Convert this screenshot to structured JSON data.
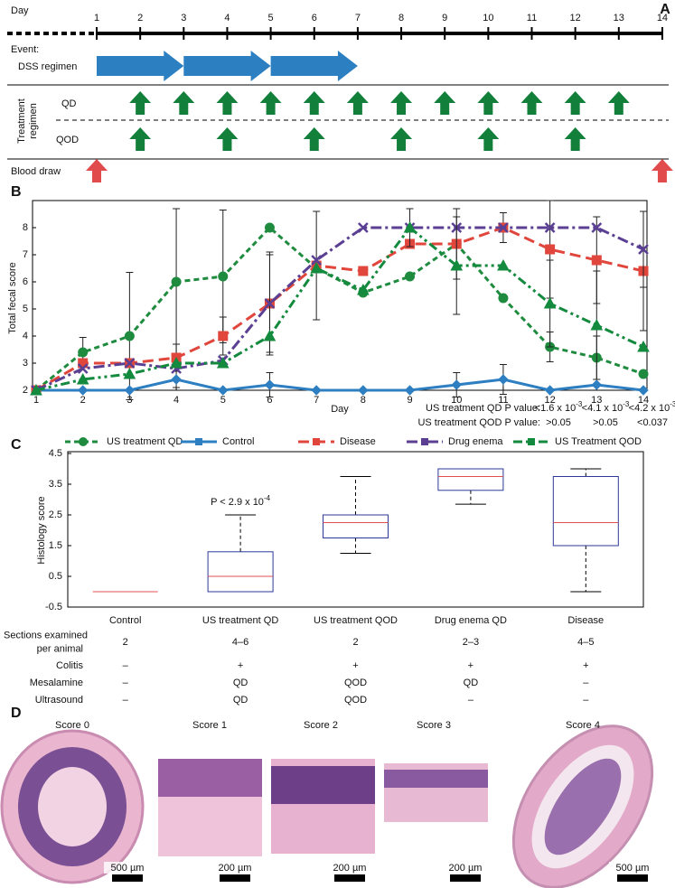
{
  "timeline": {
    "label": "A",
    "day_label": "Day",
    "days": [
      1,
      2,
      3,
      4,
      5,
      6,
      7,
      8,
      9,
      10,
      11,
      12,
      13,
      14
    ],
    "event_label": "Event:",
    "dss": {
      "label": "DSS regimen",
      "segments": [
        [
          1,
          3
        ],
        [
          3,
          5
        ],
        [
          5,
          7
        ]
      ]
    },
    "treatment_label": [
      "Treatment",
      "regimen"
    ],
    "qd": {
      "label": "QD",
      "days": [
        2,
        3,
        4,
        5,
        6,
        7,
        8,
        9,
        10,
        11,
        12,
        13
      ]
    },
    "qod": {
      "label": "QOD",
      "days": [
        2,
        4,
        6,
        8,
        10,
        12
      ]
    },
    "blood": {
      "label": "Blood draw",
      "days": [
        1,
        14
      ]
    }
  },
  "chart_data": [
    {
      "type": "line",
      "label": "B",
      "xlabel": "Day",
      "ylabel": "Total fecal score",
      "x": [
        1,
        2,
        3,
        4,
        5,
        6,
        7,
        8,
        9,
        10,
        11,
        12,
        13,
        14
      ],
      "xlim": [
        1,
        14
      ],
      "xticks": [
        1,
        2,
        3,
        4,
        5,
        6,
        7,
        8,
        9,
        10,
        11,
        12,
        13,
        14
      ],
      "ylim": [
        2,
        9
      ],
      "yticks": [
        2,
        3,
        4,
        5,
        6,
        7,
        8
      ],
      "series": [
        {
          "name": "US treatment QD",
          "color": "#1f8b3f",
          "dash": "6,4",
          "marker": "circle",
          "values": [
            2,
            3.4,
            4.0,
            6.0,
            6.2,
            8.0,
            6.5,
            5.6,
            6.2,
            7.4,
            5.4,
            3.6,
            3.2,
            2.6
          ],
          "errors": [
            null,
            0.55,
            2.35,
            2.7,
            2.45,
            null,
            null,
            null,
            null,
            null,
            null,
            0.55,
            0.8,
            null
          ]
        },
        {
          "name": "Control",
          "color": "#2e7fc1",
          "dash": "none",
          "marker": "diamond",
          "values": [
            2,
            2,
            2,
            2.4,
            2,
            2.2,
            2,
            2,
            2,
            2.2,
            2.4,
            2,
            2.2,
            2
          ],
          "errors": [
            null,
            null,
            null,
            0.3,
            null,
            0.45,
            null,
            null,
            null,
            0.45,
            0.55,
            null,
            null,
            null
          ]
        },
        {
          "name": "Disease",
          "color": "#e0463c",
          "dash": "12,6",
          "marker": "square",
          "values": [
            2,
            3.0,
            3.0,
            3.2,
            4.0,
            5.2,
            6.6,
            6.4,
            7.4,
            7.4,
            8.0,
            7.2,
            6.8,
            6.4
          ],
          "errors": [
            null,
            null,
            null,
            0.5,
            0.7,
            1.8,
            2.0,
            null,
            null,
            1.3,
            0.55,
            1.8,
            1.6,
            2.2
          ]
        },
        {
          "name": "Drug enema",
          "color": "#5b3f93",
          "dash": "12,4,3,4",
          "marker": "x",
          "values": [
            2,
            2.8,
            3.0,
            2.8,
            3.1,
            5.2,
            6.8,
            8,
            8,
            8,
            8,
            8,
            8,
            7.2
          ],
          "errors": [
            null,
            null,
            null,
            null,
            null,
            1.9,
            null,
            null,
            null,
            null,
            null,
            null,
            null,
            1.4
          ]
        },
        {
          "name": "US Treatment QOD",
          "color": "#138a3e",
          "dash": "10,4,3,4,3,4",
          "marker": "triangle",
          "values": [
            2,
            2.4,
            2.6,
            3.0,
            3.0,
            4.0,
            6.5,
            5.7,
            8.0,
            6.6,
            6.6,
            5.2,
            4.4,
            3.6
          ],
          "errors": [
            null,
            null,
            null,
            null,
            null,
            null,
            null,
            null,
            0.7,
            1.8,
            null,
            1.6,
            2.0,
            null
          ]
        }
      ],
      "pvalues": [
        {
          "label": "US treatment QD P value:",
          "values": [
            {
              "text": "<1.6 x 10",
              "exp": "-3"
            },
            {
              "text": "<4.1 x 10",
              "exp": "-3"
            },
            {
              "text": "<4.2 x 10",
              "exp": "-3"
            }
          ]
        },
        {
          "label": "US treatment QOD P value:",
          "values": [
            {
              "text": ">0.05"
            },
            {
              "text": ">0.05"
            },
            {
              "text": "<0.037"
            }
          ]
        }
      ]
    },
    {
      "type": "box",
      "label": "C",
      "ylabel": "Histology score",
      "categories": [
        "Control",
        "US treatment QD",
        "US treatment QOD",
        "Drug enema QD",
        "Disease"
      ],
      "boxes": [
        {
          "min": 0,
          "q1": 0,
          "median": 0,
          "q3": 0,
          "max": 0
        },
        {
          "min": 0,
          "q1": 0,
          "median": 0.5,
          "q3": 1.3,
          "max": 2.5
        },
        {
          "min": 1.25,
          "q1": 1.75,
          "median": 2.25,
          "q3": 2.5,
          "max": 3.75
        },
        {
          "min": 2.85,
          "q1": 3.3,
          "median": 3.75,
          "q3": 4.0,
          "max": 4.0
        },
        {
          "min": 0,
          "q1": 1.5,
          "median": 2.25,
          "q3": 3.75,
          "max": 4.0
        }
      ],
      "box_color": "#2b3a9a",
      "median_color": "#e05050",
      "ylim": [
        -0.5,
        4.5
      ],
      "yticks": [
        -0.5,
        0.5,
        1.5,
        2.5,
        3.5,
        4.5
      ],
      "annotation": {
        "text": "P < 2.9 x 10",
        "exp": "-4"
      }
    }
  ],
  "table": {
    "rows": [
      {
        "label": [
          "Sections examined",
          "per animal"
        ],
        "cells": [
          "2",
          "4–6",
          "2",
          "2–3",
          "4–5"
        ]
      },
      {
        "label": [
          "Colitis"
        ],
        "cells": [
          "–",
          "+",
          "+",
          "+",
          "+"
        ]
      },
      {
        "label": [
          "Mesalamine"
        ],
        "cells": [
          "–",
          "QD",
          "QOD",
          "QD",
          "–"
        ]
      },
      {
        "label": [
          "Ultrasound"
        ],
        "cells": [
          "–",
          "QD",
          "QOD",
          "–",
          "–"
        ]
      }
    ]
  },
  "histology": {
    "label": "D",
    "panels": [
      {
        "title": "Score 0",
        "scale": "500 µm"
      },
      {
        "title": "Score 1",
        "scale": "200 µm"
      },
      {
        "title": "Score 2",
        "scale": "200 µm"
      },
      {
        "title": "Score 3",
        "scale": "200 µm"
      },
      {
        "title": "Score 4",
        "scale": "500 µm"
      }
    ]
  }
}
